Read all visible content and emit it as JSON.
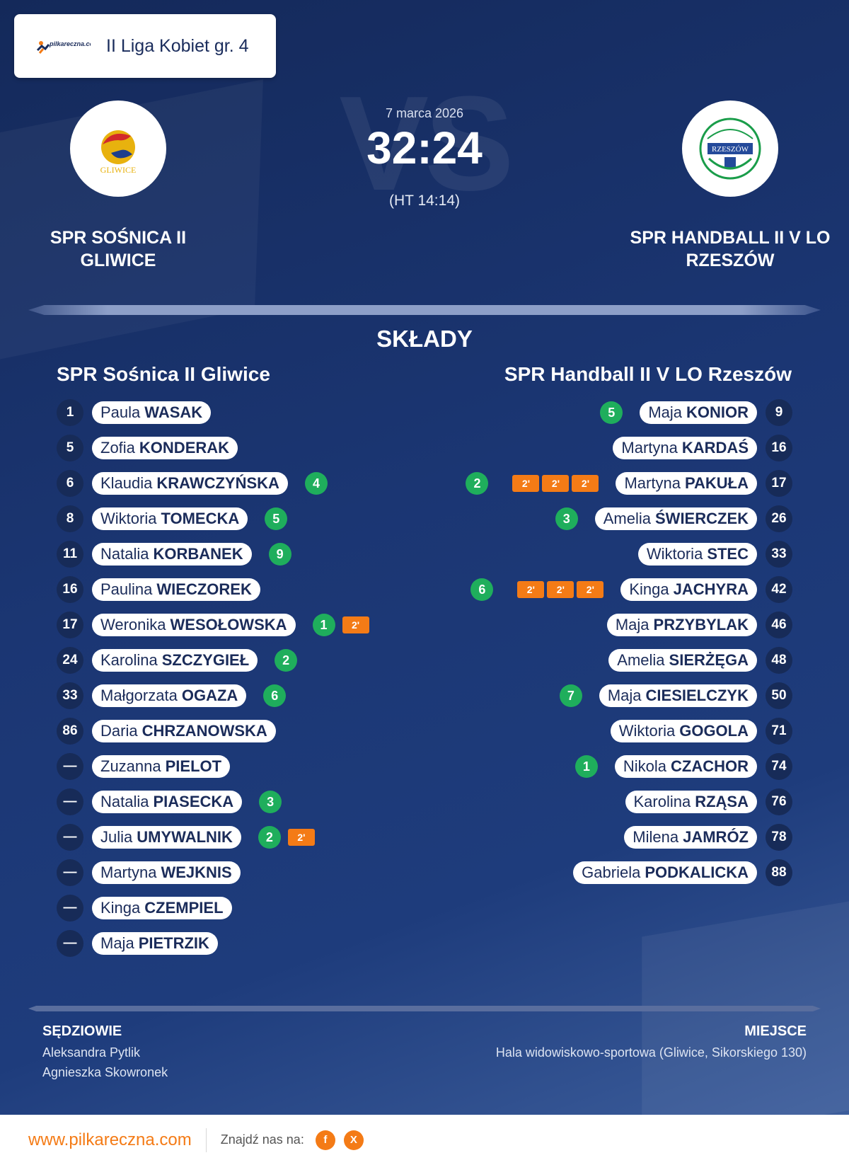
{
  "header": {
    "logo_text": "pilkareczna.com",
    "league": "II Liga Kobiet gr. 4"
  },
  "match": {
    "date": "7 marca 2026",
    "score": "32:24",
    "halftime": "(HT 14:14)",
    "watermark": "VS"
  },
  "home_team": {
    "name": "SPR Sośnica II Gliwice",
    "logo_text": "GLIWICE",
    "logo_colors": [
      "#e8b20e",
      "#d22a2a",
      "#1c3e8c"
    ]
  },
  "away_team": {
    "name": "SPR Handball II V LO Rzeszów",
    "logo_text": "RZESZÓW",
    "logo_colors": [
      "#1a9d4a",
      "#244a9a"
    ]
  },
  "lineups": {
    "title": "SKŁADY",
    "home": {
      "title": "SPR Sośnica II Gliwice",
      "players": [
        {
          "number": "1",
          "first": "Paula",
          "last": "WASAK",
          "goals": "",
          "suspensions": []
        },
        {
          "number": "5",
          "first": "Zofia",
          "last": "KONDERAK",
          "goals": "",
          "suspensions": []
        },
        {
          "number": "6",
          "first": "Klaudia",
          "last": "KRAWCZYŃSKA",
          "goals": "4",
          "suspensions": []
        },
        {
          "number": "8",
          "first": "Wiktoria",
          "last": "TOMECKA",
          "goals": "5",
          "suspensions": []
        },
        {
          "number": "11",
          "first": "Natalia",
          "last": "KORBANEK",
          "goals": "9",
          "suspensions": []
        },
        {
          "number": "16",
          "first": "Paulina",
          "last": "WIECZOREK",
          "goals": "",
          "suspensions": []
        },
        {
          "number": "17",
          "first": "Weronika",
          "last": "WESOŁOWSKA",
          "goals": "1",
          "suspensions": [
            "2'"
          ]
        },
        {
          "number": "24",
          "first": "Karolina",
          "last": "SZCZYGIEŁ",
          "goals": "2",
          "suspensions": []
        },
        {
          "number": "33",
          "first": "Małgorzata",
          "last": "OGAZA",
          "goals": "6",
          "suspensions": []
        },
        {
          "number": "86",
          "first": "Daria",
          "last": "CHRZANOWSKA",
          "goals": "",
          "suspensions": []
        },
        {
          "number": "—",
          "first": "Zuzanna",
          "last": "PIELOT",
          "goals": "",
          "suspensions": []
        },
        {
          "number": "—",
          "first": "Natalia",
          "last": "PIASECKA",
          "goals": "3",
          "suspensions": []
        },
        {
          "number": "—",
          "first": "Julia",
          "last": "UMYWALNIK",
          "goals": "2",
          "suspensions": [
            "2'"
          ]
        },
        {
          "number": "—",
          "first": "Martyna",
          "last": "WEJKNIS",
          "goals": "",
          "suspensions": []
        },
        {
          "number": "—",
          "first": "Kinga",
          "last": "CZEMPIEL",
          "goals": "",
          "suspensions": []
        },
        {
          "number": "—",
          "first": "Maja",
          "last": "PIETRZIK",
          "goals": "",
          "suspensions": []
        }
      ]
    },
    "away": {
      "title": "SPR Handball II V LO Rzeszów",
      "players": [
        {
          "number": "9",
          "first": "Maja",
          "last": "KONIOR",
          "goals": "5",
          "suspensions": []
        },
        {
          "number": "16",
          "first": "Martyna",
          "last": "KARDAŚ",
          "goals": "",
          "suspensions": []
        },
        {
          "number": "17",
          "first": "Martyna",
          "last": "PAKUŁA",
          "goals": "2",
          "suspensions": [
            "2'",
            "2'",
            "2'"
          ]
        },
        {
          "number": "26",
          "first": "Amelia",
          "last": "ŚWIERCZEK",
          "goals": "3",
          "suspensions": []
        },
        {
          "number": "33",
          "first": "Wiktoria",
          "last": "STEC",
          "goals": "",
          "suspensions": []
        },
        {
          "number": "42",
          "first": "Kinga",
          "last": "JACHYRA",
          "goals": "6",
          "suspensions": [
            "2'",
            "2'",
            "2'"
          ]
        },
        {
          "number": "46",
          "first": "Maja",
          "last": "PRZYBYLAK",
          "goals": "",
          "suspensions": []
        },
        {
          "number": "48",
          "first": "Amelia",
          "last": "SIERŻĘGA",
          "goals": "",
          "suspensions": []
        },
        {
          "number": "50",
          "first": "Maja",
          "last": "CIESIELCZYK",
          "goals": "7",
          "suspensions": []
        },
        {
          "number": "71",
          "first": "Wiktoria",
          "last": "GOGOLA",
          "goals": "",
          "suspensions": []
        },
        {
          "number": "74",
          "first": "Nikola",
          "last": "CZACHOR",
          "goals": "1",
          "suspensions": []
        },
        {
          "number": "76",
          "first": "Karolina",
          "last": "RZĄSA",
          "goals": "",
          "suspensions": []
        },
        {
          "number": "78",
          "first": "Milena",
          "last": "JAMRÓZ",
          "goals": "",
          "suspensions": []
        },
        {
          "number": "88",
          "first": "Gabriela",
          "last": "PODKALICKA",
          "goals": "",
          "suspensions": []
        }
      ]
    }
  },
  "officials": {
    "label": "SĘDZIOWIE",
    "names": [
      "Aleksandra Pytlik",
      "Agnieszka Skowronek"
    ]
  },
  "venue": {
    "label": "MIEJSCE",
    "text": "Hala widowiskowo-sportowa (Gliwice, Sikorskiego 130)"
  },
  "footer": {
    "site": "www.pilkareczna.com",
    "find_us": "Znajdź nas na:",
    "social": [
      {
        "icon": "facebook-icon",
        "glyph": "f"
      },
      {
        "icon": "x-icon",
        "glyph": "X"
      }
    ]
  },
  "colors": {
    "background": "#1b3673",
    "goal_badge": "#1fae5c",
    "suspension_badge": "#f47b16",
    "accent": "#f47b16"
  }
}
